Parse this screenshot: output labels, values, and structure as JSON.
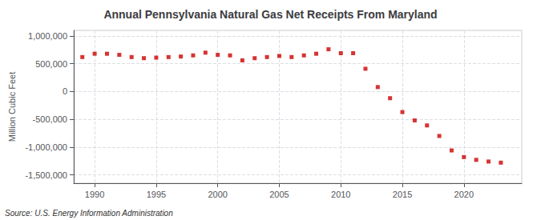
{
  "chart_data": {
    "type": "scatter",
    "title": "Annual Pennsylvania Natural Gas Net Receipts From Maryland",
    "ylabel": "Million Cubic Feet",
    "annotations": [
      "Source: U.S. Energy Information Administration"
    ],
    "x": [
      1989,
      1990,
      1991,
      1992,
      1993,
      1994,
      1995,
      1996,
      1997,
      1998,
      1999,
      2000,
      2001,
      2002,
      2003,
      2004,
      2005,
      2006,
      2007,
      2008,
      2009,
      2010,
      2011,
      2012,
      2013,
      2014,
      2015,
      2016,
      2017,
      2018,
      2019,
      2020,
      2021,
      2022,
      2023
    ],
    "values": [
      620000,
      680000,
      680000,
      660000,
      620000,
      600000,
      610000,
      620000,
      630000,
      650000,
      700000,
      660000,
      650000,
      560000,
      600000,
      620000,
      640000,
      620000,
      650000,
      680000,
      760000,
      690000,
      690000,
      410000,
      80000,
      -120000,
      -370000,
      -520000,
      -610000,
      -800000,
      -1060000,
      -1180000,
      -1230000,
      -1260000,
      -1280000
    ],
    "color": "#cc0000",
    "marker": "square",
    "xlim": [
      1988.3,
      2024.7
    ],
    "xticks": [
      1990,
      1995,
      2000,
      2005,
      2010,
      2015,
      2020
    ],
    "ylim": [
      -1650000,
      1100000
    ],
    "yticks": [
      {
        "value": -1500000,
        "label": "-1,500,000"
      },
      {
        "value": -1000000,
        "label": "-1,000,000"
      },
      {
        "value": -500000,
        "label": "-500,000"
      },
      0,
      {
        "value": 500000,
        "label": "500,000"
      },
      {
        "value": 1000000,
        "label": "1,000,000"
      }
    ],
    "grid": true
  }
}
